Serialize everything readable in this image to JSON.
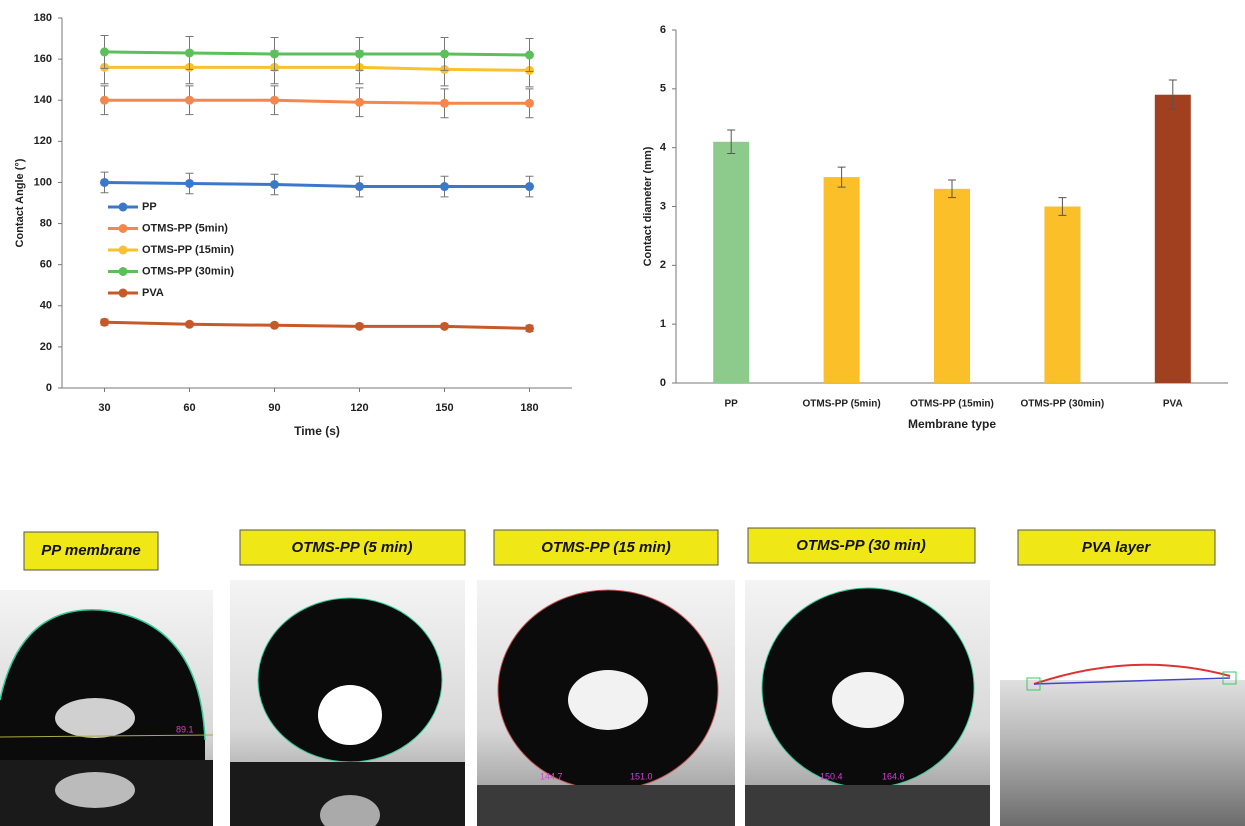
{
  "chart_data": [
    {
      "type": "line",
      "x_label": "Time (s)",
      "y_label": "Contact Angle (°)",
      "x": [
        30,
        60,
        90,
        120,
        150,
        180
      ],
      "xlim": [
        15,
        195
      ],
      "xticks": [
        30,
        60,
        90,
        120,
        150,
        180
      ],
      "ylim": [
        0,
        180
      ],
      "yticks": [
        0,
        20,
        40,
        60,
        80,
        100,
        120,
        140,
        160,
        180
      ],
      "legend": "center-left",
      "series": [
        {
          "name": "PP",
          "color": "#3b78c9",
          "values": [
            100,
            99.5,
            99,
            98,
            98,
            98
          ],
          "errors": [
            5,
            5,
            5,
            5,
            5,
            5
          ]
        },
        {
          "name": "OTMS-PP (5min)",
          "color": "#f4874b",
          "values": [
            140,
            140,
            140,
            139,
            138.5,
            138.5
          ],
          "errors": [
            7,
            7,
            7,
            7,
            7,
            7
          ]
        },
        {
          "name": "OTMS-PP (15min)",
          "color": "#fac12e",
          "values": [
            156,
            156,
            156,
            156,
            155,
            154.5
          ],
          "errors": [
            8,
            8,
            8,
            8,
            8,
            8
          ]
        },
        {
          "name": "OTMS-PP (30min)",
          "color": "#5cbf5c",
          "values": [
            163.5,
            163,
            162.5,
            162.5,
            162.5,
            162
          ],
          "errors": [
            8,
            8,
            8,
            8,
            8,
            8
          ]
        },
        {
          "name": "PVA",
          "color": "#c55a28",
          "values": [
            32,
            31,
            30.5,
            30,
            30,
            29
          ],
          "errors": [
            1.5,
            1,
            1,
            1,
            1,
            1.5
          ]
        }
      ]
    },
    {
      "type": "bar",
      "x_label": "Membrane type",
      "y_label": "Contact diameter (mm)",
      "categories": [
        "PP",
        "OTMS-PP (5min)",
        "OTMS-PP (15min)",
        "OTMS-PP (30min)",
        "PVA"
      ],
      "values": [
        4.1,
        3.5,
        3.3,
        3.0,
        4.9
      ],
      "errors": [
        0.2,
        0.17,
        0.15,
        0.15,
        0.25
      ],
      "colors": [
        "#8ccb8c",
        "#fbbf2a",
        "#fbbf2a",
        "#fbbf2a",
        "#a0401e"
      ],
      "ylim": [
        0,
        6
      ],
      "yticks": [
        0,
        1,
        2,
        3,
        4,
        5,
        6
      ]
    }
  ],
  "images": [
    {
      "label": "PP membrane",
      "angles": [
        "89.1"
      ]
    },
    {
      "label": "OTMS-PP (5 min)",
      "angles": []
    },
    {
      "label": "OTMS-PP (15 min)",
      "angles": [
        "144.7",
        "151.0"
      ]
    },
    {
      "label": "OTMS-PP (30  min)",
      "angles": [
        "150.4",
        "164.6"
      ]
    },
    {
      "label": "PVA layer",
      "angles": []
    }
  ]
}
